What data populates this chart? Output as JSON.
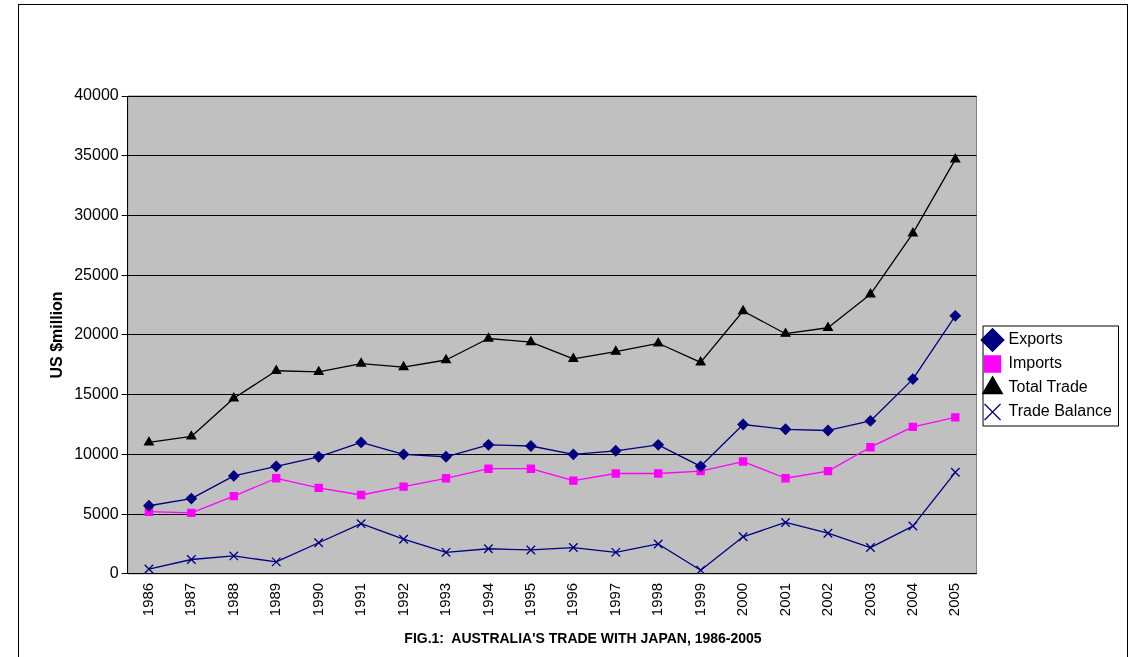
{
  "chart_data": {
    "type": "line",
    "title": "FIG.1:  AUSTRALIA'S TRADE WITH JAPAN, 1986-2005",
    "ylabel": "US $million",
    "categories": [
      "1986",
      "1987",
      "1988",
      "1989",
      "1990",
      "1991",
      "1992",
      "1993",
      "1994",
      "1995",
      "1996",
      "1997",
      "1998",
      "1999",
      "2000",
      "2001",
      "2002",
      "2003",
      "2004",
      "2005"
    ],
    "series": [
      {
        "name": "Exports",
        "color": "#000080",
        "marker": "diamond",
        "values": [
          5700,
          6300,
          8200,
          9000,
          9800,
          11000,
          10000,
          9800,
          10800,
          10700,
          10000,
          10300,
          10800,
          9000,
          12500,
          12100,
          12000,
          12800,
          16300,
          21600
        ]
      },
      {
        "name": "Imports",
        "color": "#ff00ff",
        "marker": "square",
        "values": [
          5200,
          5100,
          6500,
          8000,
          7200,
          6600,
          7300,
          8000,
          8800,
          8800,
          7800,
          8400,
          8400,
          8600,
          9400,
          8000,
          8600,
          10600,
          12300,
          13100
        ]
      },
      {
        "name": "Total Trade",
        "color": "#000000",
        "marker": "triangle",
        "values": [
          11000,
          11500,
          14700,
          17000,
          16900,
          17600,
          17300,
          17900,
          19700,
          19400,
          18000,
          18600,
          19300,
          17700,
          22000,
          20100,
          20600,
          23400,
          28500,
          34700
        ]
      },
      {
        "name": "Trade Balance",
        "color": "#000080",
        "marker": "cross",
        "values": [
          400,
          1200,
          1500,
          1000,
          2600,
          4200,
          2900,
          1800,
          2100,
          2000,
          2200,
          1800,
          2500,
          300,
          3100,
          4300,
          3400,
          2200,
          4000,
          8500
        ]
      }
    ],
    "ylim": [
      0,
      40000
    ],
    "yticks": [
      0,
      5000,
      10000,
      15000,
      20000,
      25000,
      30000,
      35000,
      40000
    ],
    "grid": "y",
    "legend": "right"
  }
}
